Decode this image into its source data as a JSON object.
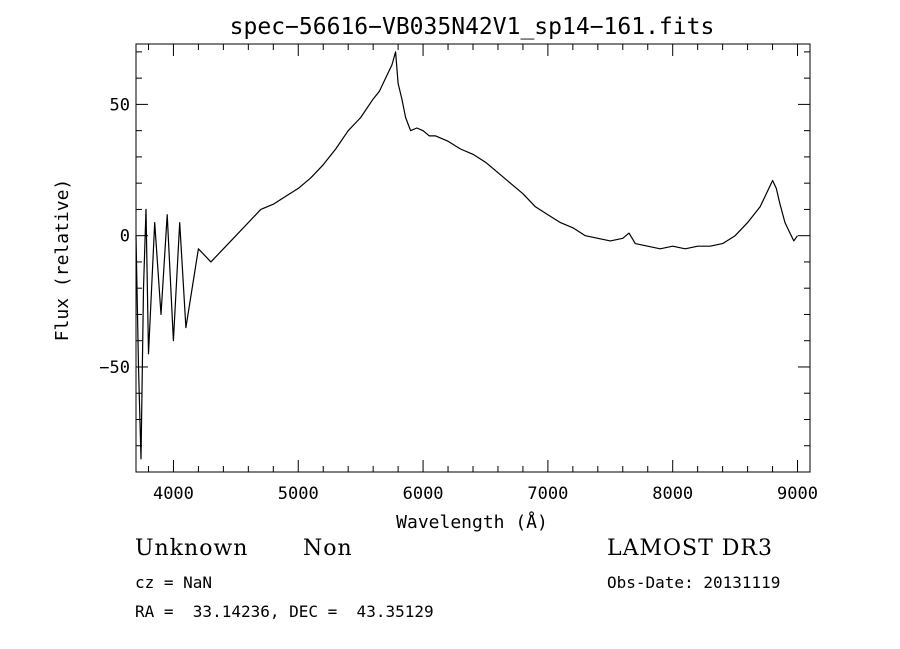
{
  "chart_data": {
    "type": "line",
    "title": "spec−56616−VB035N42V1_sp14−161.fits",
    "xlabel": "Wavelength (Å)",
    "ylabel": "Flux (relative)",
    "xlim": [
      3700,
      9100
    ],
    "ylim": [
      -90,
      73
    ],
    "xticks": [
      4000,
      5000,
      6000,
      7000,
      8000,
      9000
    ],
    "xtick_labels": [
      "4000",
      "5000",
      "6000",
      "7000",
      "8000",
      "9000"
    ],
    "yticks": [
      -50,
      0,
      50
    ],
    "ytick_labels": [
      "−50",
      "0",
      "50"
    ],
    "grid": false,
    "series": [
      {
        "name": "flux",
        "x": [
          3700,
          3720,
          3740,
          3760,
          3780,
          3800,
          3850,
          3900,
          3950,
          4000,
          4050,
          4100,
          4200,
          4300,
          4400,
          4500,
          4600,
          4700,
          4800,
          4900,
          5000,
          5100,
          5200,
          5300,
          5400,
          5500,
          5600,
          5650,
          5700,
          5750,
          5780,
          5800,
          5830,
          5860,
          5900,
          5950,
          6000,
          6050,
          6100,
          6200,
          6300,
          6400,
          6500,
          6600,
          6700,
          6800,
          6900,
          7000,
          7100,
          7200,
          7300,
          7400,
          7500,
          7600,
          7650,
          7700,
          7800,
          7900,
          8000,
          8100,
          8200,
          8300,
          8400,
          8500,
          8600,
          8700,
          8750,
          8800,
          8830,
          8860,
          8900,
          8940,
          8970,
          9000
        ],
        "values": [
          0,
          -50,
          -85,
          -20,
          10,
          -45,
          5,
          -30,
          8,
          -40,
          5,
          -35,
          -5,
          -10,
          -5,
          0,
          5,
          10,
          12,
          15,
          18,
          22,
          27,
          33,
          40,
          45,
          52,
          55,
          60,
          65,
          70,
          58,
          52,
          45,
          40,
          41,
          40,
          38,
          38,
          36,
          33,
          31,
          28,
          24,
          20,
          16,
          11,
          8,
          5,
          3,
          0,
          -1,
          -2,
          -1,
          1,
          -3,
          -4,
          -5,
          -4,
          -5,
          -4,
          -4,
          -3,
          0,
          5,
          11,
          16,
          21,
          18,
          12,
          5,
          1,
          -2,
          0
        ]
      }
    ]
  },
  "info": {
    "object_class": "Unknown",
    "subclass": "Non",
    "survey": "LAMOST DR3",
    "cz": "cz = NaN",
    "obs_date": "Obs-Date: 20131119",
    "coords": "RA =  33.14236, DEC =  43.35129"
  }
}
